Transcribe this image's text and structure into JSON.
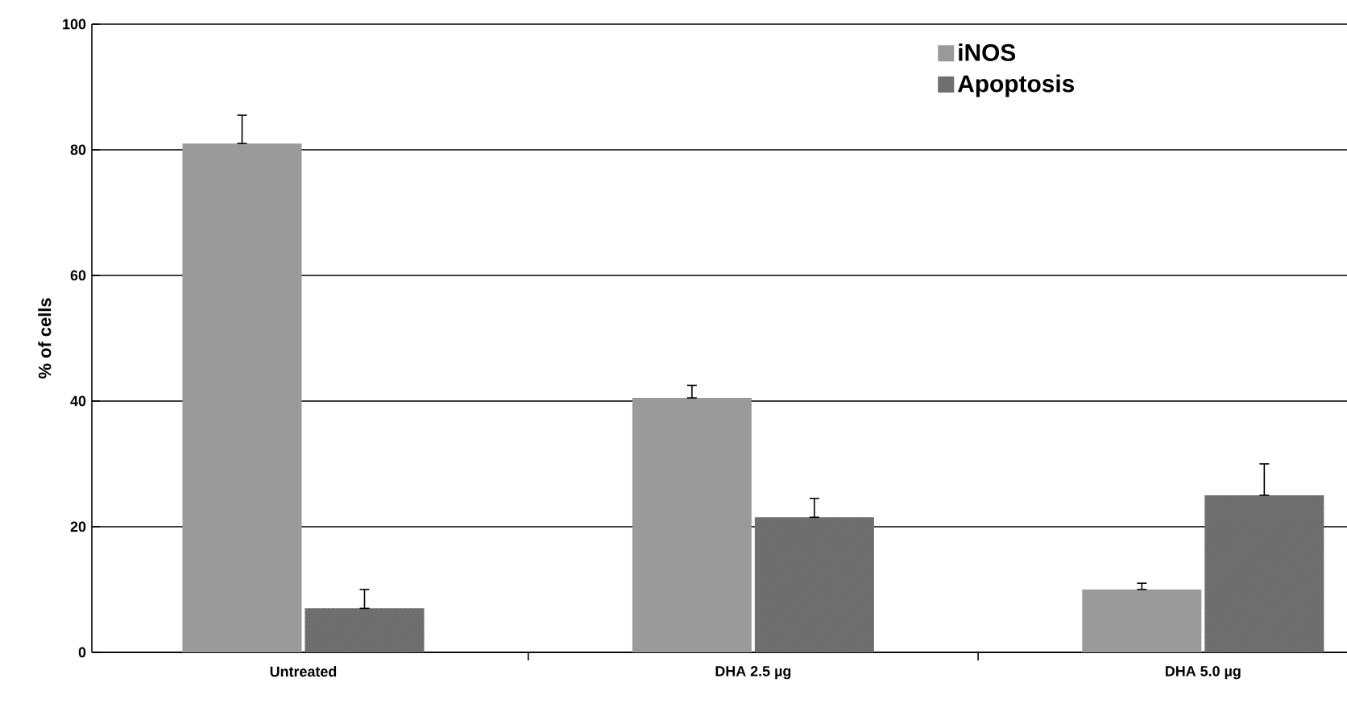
{
  "chart_data": {
    "type": "bar",
    "ylabel": "% of cells",
    "categories": [
      "Untreated",
      "DHA 2.5 µg",
      "DHA 5.0 µg"
    ],
    "series": [
      {
        "name": "iNOS",
        "color": "#9a9a9a",
        "values": [
          81,
          40.5,
          10
        ],
        "errors": [
          [
            81,
            85.5
          ],
          [
            40.5,
            42.5
          ],
          [
            10,
            11
          ]
        ]
      },
      {
        "name": "Apoptosis",
        "color": "#6e6e6e",
        "values": [
          7,
          21.5,
          25
        ],
        "errors": [
          [
            7,
            10
          ],
          [
            21.5,
            24.5
          ],
          [
            25,
            30
          ]
        ]
      }
    ],
    "ylim": [
      0,
      100
    ],
    "yticks": [
      0,
      20,
      40,
      60,
      80,
      100
    ],
    "grid": "y",
    "legend": "top right"
  }
}
